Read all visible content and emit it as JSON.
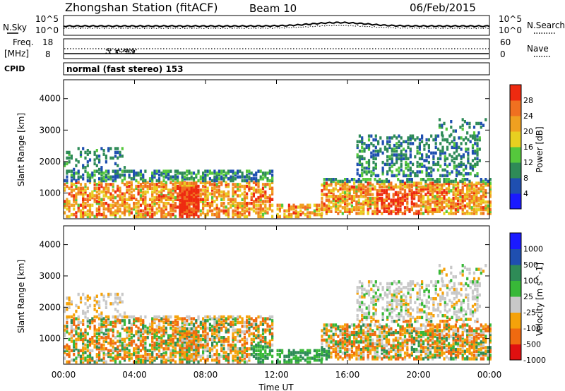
{
  "header": {
    "station": "Zhongshan Station (fitACF)",
    "beam": "Beam 10",
    "date": "06/Feb/2015"
  },
  "noise_panel": {
    "left_label": "N.Sky",
    "right_label": "N.Search",
    "tick_top": "10^5",
    "tick_bottom": "10^0"
  },
  "freq_panel": {
    "left_label_1": "Freq.",
    "left_label_2": "[MHz]",
    "left_tick_top": "18",
    "left_tick_bottom": "8",
    "right_label": "Nave",
    "right_tick_top": "60",
    "right_tick_bottom": "0"
  },
  "cpid_panel": {
    "label": "CPID",
    "text": "normal (fast stereo) 153"
  },
  "colors": {
    "power": [
      "#1a1aff",
      "#1f4fb0",
      "#2e8b57",
      "#55c83c",
      "#e8d020",
      "#f0a020",
      "#f07020",
      "#ee2a10"
    ],
    "velocity": [
      "#e01010",
      "#f06a10",
      "#f5a20a",
      "#c8c8c8",
      "#38b838",
      "#2e8b57",
      "#1f4fb0",
      "#1a1aff"
    ]
  },
  "chart_data": [
    {
      "type": "heatmap",
      "name": "power",
      "ylabel": "Slant Range [km]",
      "ylim": [
        180,
        4600
      ],
      "xlim_hours": [
        0,
        24
      ],
      "yticks": [
        "1000",
        "2000",
        "3000",
        "4000"
      ],
      "ytick_values": [
        1000,
        2000,
        3000,
        4000
      ],
      "colorbar_label": "Power [dB]",
      "colorbar_ticks": [
        "28",
        "24",
        "20",
        "16",
        "12",
        "8",
        "4"
      ]
    },
    {
      "type": "heatmap",
      "name": "velocity",
      "xlabel": "Time UT",
      "ylabel": "Slant Range [km]",
      "ylim": [
        180,
        4600
      ],
      "xlim_hours": [
        0,
        24
      ],
      "yticks": [
        "1000",
        "2000",
        "3000",
        "4000"
      ],
      "ytick_values": [
        1000,
        2000,
        3000,
        4000
      ],
      "xticks": [
        "00:00",
        "04:00",
        "08:00",
        "12:00",
        "16:00",
        "20:00",
        "00:00"
      ],
      "colorbar_label": "Velocity [m s^-1]",
      "colorbar_ticks": [
        "1000",
        "500",
        "100",
        "25",
        "-25",
        "-100",
        "-500",
        "-1000"
      ]
    }
  ]
}
